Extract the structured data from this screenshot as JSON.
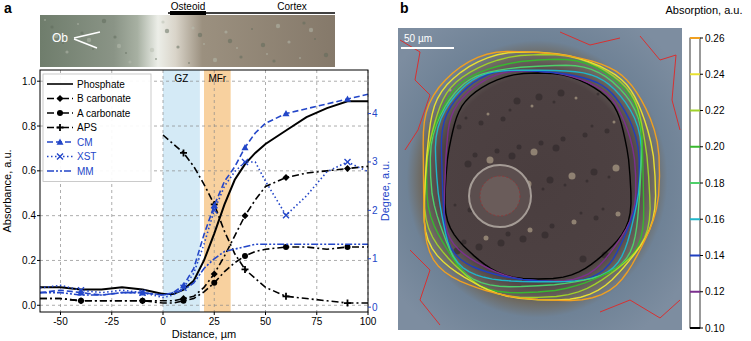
{
  "chart_data": [
    {
      "type": "line",
      "panel": "a",
      "x_label": "Distance, µm",
      "y_label": "Absorbance, a.u.",
      "y2_label": "Degree, a.u.",
      "image_labels": {
        "osteoid": "Osteoid",
        "cortex": "Cortex",
        "cell": "Ob"
      },
      "x": [
        -60,
        -50,
        -40,
        -30,
        -20,
        -10,
        0,
        5,
        10,
        15,
        20,
        25,
        30,
        35,
        40,
        45,
        50,
        60,
        70,
        80,
        90,
        100
      ],
      "xlim": [
        -60,
        100
      ],
      "xticks": [
        -50,
        -25,
        0,
        25,
        50,
        75,
        100
      ],
      "ylim": [
        -0.03,
        1.05
      ],
      "yticks": [
        {
          "value": 0,
          "label": "0.0"
        },
        0.2,
        0.4,
        0.6,
        0.8,
        {
          "value": 1,
          "label": "1.0"
        }
      ],
      "y2lim": [
        -0.1,
        4.9
      ],
      "y2ticks": [
        0,
        1,
        2,
        3,
        4
      ],
      "grid": true,
      "legend": "upper left",
      "regions": [
        {
          "label": "GZ",
          "from": 0,
          "to": 18,
          "color": "#cde6f5"
        },
        {
          "label": "MFr",
          "from": 20,
          "to": 33,
          "color": "#f7c98e"
        }
      ],
      "series": [
        {
          "name": "Phosphate",
          "color": "#000000",
          "line_style": "solid",
          "marker": "none",
          "values": [
            0.08,
            0.08,
            0.07,
            0.07,
            0.08,
            0.07,
            0.05,
            0.05,
            0.07,
            0.11,
            0.2,
            0.32,
            0.45,
            0.56,
            0.63,
            0.68,
            0.72,
            0.78,
            0.84,
            0.88,
            0.91,
            0.91
          ]
        },
        {
          "name": "B carbonate",
          "color": "#000000",
          "line_style": "dashdot",
          "marker": "diamond",
          "values": [
            0.03,
            0.03,
            0.02,
            0.02,
            0.02,
            0.02,
            0.02,
            0.02,
            0.03,
            0.04,
            0.08,
            0.14,
            0.22,
            0.31,
            0.4,
            0.47,
            0.53,
            0.57,
            0.59,
            0.6,
            0.61,
            0.62
          ]
        },
        {
          "name": "A carbonate",
          "color": "#000000",
          "line_style": "dashdot",
          "marker": "circle",
          "values": [
            0.03,
            0.03,
            0.02,
            0.02,
            0.02,
            0.02,
            0.01,
            0.01,
            0.02,
            0.03,
            0.06,
            0.1,
            0.15,
            0.19,
            0.22,
            0.24,
            0.25,
            0.26,
            0.26,
            0.25,
            0.26,
            0.26
          ]
        },
        {
          "name": "APS",
          "color": "#000000",
          "line_style": "dashdot",
          "marker": "plus",
          "values": [
            null,
            null,
            null,
            null,
            null,
            null,
            0.76,
            0.72,
            0.68,
            0.62,
            0.54,
            0.45,
            0.33,
            0.23,
            0.16,
            0.12,
            0.08,
            0.04,
            0.03,
            0.02,
            0.01,
            0.01
          ]
        },
        {
          "name": "CM",
          "color": "#2346c8",
          "line_style": "dashed",
          "marker": "triangle",
          "axis": "y2",
          "values": [
            0.3,
            0.35,
            0.3,
            0.25,
            0.3,
            0.3,
            0.25,
            0.3,
            0.45,
            0.8,
            1.5,
            2.1,
            2.6,
            2.9,
            3.3,
            3.6,
            3.8,
            4.0,
            4.1,
            4.2,
            4.3,
            4.4
          ]
        },
        {
          "name": "XST",
          "color": "#2346c8",
          "line_style": "dotted",
          "marker": "x",
          "axis": "y2",
          "values": [
            0.4,
            0.45,
            0.35,
            0.3,
            0.35,
            0.3,
            0.2,
            0.25,
            0.4,
            0.7,
            1.3,
            2.0,
            2.5,
            2.8,
            3.0,
            3.0,
            2.6,
            1.9,
            2.3,
            2.8,
            3.0,
            2.8
          ]
        },
        {
          "name": "MM",
          "color": "#2346c8",
          "line_style": "dashdotdot",
          "marker": "none",
          "axis": "y2",
          "values": [
            0.3,
            0.3,
            0.25,
            0.25,
            0.3,
            0.3,
            0.25,
            0.3,
            0.35,
            0.5,
            0.8,
            1.0,
            1.15,
            1.2,
            1.25,
            1.3,
            1.3,
            1.3,
            1.3,
            1.3,
            1.3,
            1.3
          ]
        }
      ]
    },
    {
      "type": "contour",
      "panel": "b",
      "title": "Absorption, a.u.",
      "scale_bar": "50 µm",
      "levels": [
        0.1,
        0.12,
        0.14,
        0.16,
        0.18,
        0.2,
        0.22,
        0.24,
        0.26
      ],
      "colors": [
        "#000000",
        "#7b2f8e",
        "#1f3fbf",
        "#1fb5c9",
        "#4fcf6a",
        "#38b82f",
        "#9fd12a",
        "#e8e030",
        "#f0a020"
      ],
      "colorbar_lim": [
        0.1,
        0.26
      ],
      "colorbar_ticks": [
        {
          "value": 0.1,
          "label": "0.10"
        },
        0.12,
        0.14,
        0.16,
        0.18,
        {
          "value": 0.2,
          "label": "0.20"
        },
        0.22,
        0.24,
        0.26
      ]
    }
  ]
}
